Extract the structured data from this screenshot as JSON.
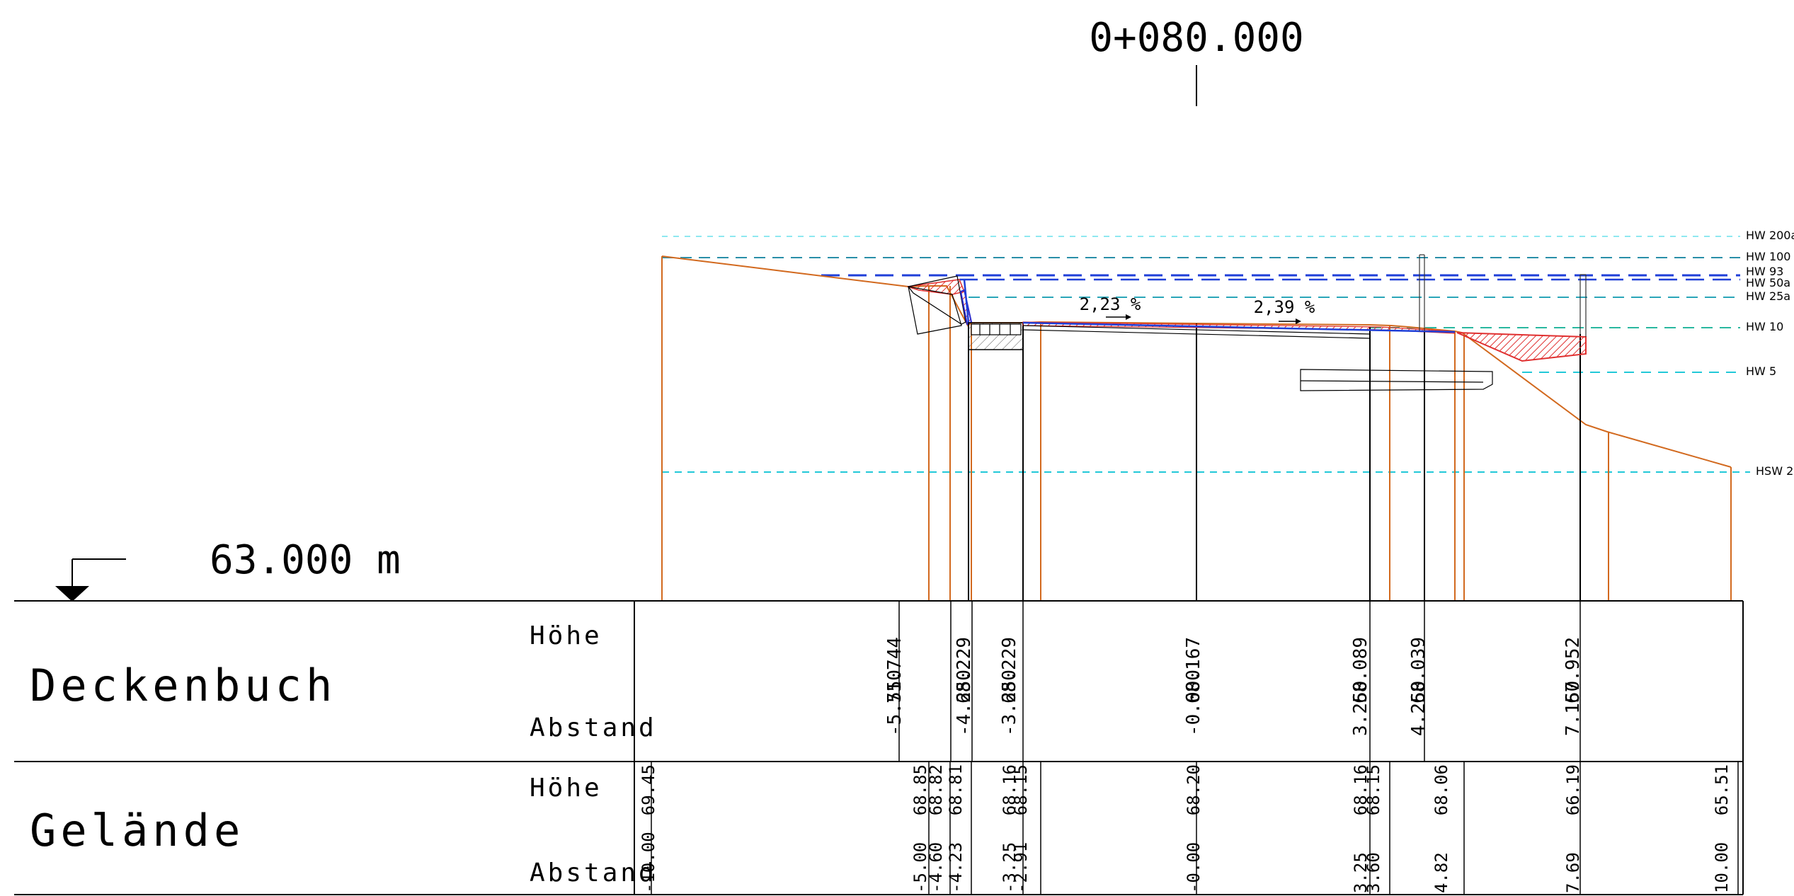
{
  "station": "0+080.000",
  "datum": "63.000 m",
  "slopes": [
    "2,23 %",
    "2,39 %"
  ],
  "water_levels": [
    {
      "label": "HW 200a",
      "color": "#8ee8f0"
    },
    {
      "label": "HW 100",
      "color": "#2a8fa8"
    },
    {
      "label": "HW 93",
      "color": "#1f3fd8"
    },
    {
      "label": "HW 50a",
      "color": "#1f3fd8"
    },
    {
      "label": "HW 25a",
      "color": "#2aa6b8"
    },
    {
      "label": "HW 10",
      "color": "#2ab8a0"
    },
    {
      "label": "HW 5",
      "color": "#22c8d8"
    },
    {
      "label": "HSW 2",
      "color": "#22c8d8"
    }
  ],
  "table": {
    "sections": [
      {
        "title": "Deckenbuch",
        "row_labels": [
          "Höhe",
          "Abstand"
        ],
        "entries": [
          {
            "hoehe": "71.744",
            "abstand": "-5.550"
          },
          {
            "hoehe": "68.229",
            "abstand": "-4.250"
          },
          {
            "hoehe": "68.229",
            "abstand": "-3.250"
          },
          {
            "hoehe": "68.167",
            "abstand": "-0.000"
          },
          {
            "hoehe": "68.089",
            "abstand": "3.250"
          },
          {
            "hoehe": "68.039",
            "abstand": "4.250"
          },
          {
            "hoehe": "67.952",
            "abstand": "7.150"
          }
        ]
      },
      {
        "title": "Gelände",
        "row_labels": [
          "Höhe",
          "Abstand"
        ],
        "entries": [
          {
            "hoehe": "69.45",
            "abstand": "-10.00"
          },
          {
            "hoehe": "68.85",
            "abstand": "-5.00"
          },
          {
            "hoehe": "68.82",
            "abstand": "-4.60"
          },
          {
            "hoehe": "68.81",
            "abstand": "-4.23"
          },
          {
            "hoehe": "68.16",
            "abstand": "-3.25"
          },
          {
            "hoehe": "68.15",
            "abstand": "-2.91"
          },
          {
            "hoehe": "68.20",
            "abstand": "-0.00"
          },
          {
            "hoehe": "68.16",
            "abstand": "3.25"
          },
          {
            "hoehe": "68.15",
            "abstand": "3.60"
          },
          {
            "hoehe": "68.06",
            "abstand": "4.82"
          },
          {
            "hoehe": "66.19",
            "abstand": "7.69"
          },
          {
            "hoehe": "65.51",
            "abstand": "10.00"
          }
        ]
      }
    ]
  }
}
